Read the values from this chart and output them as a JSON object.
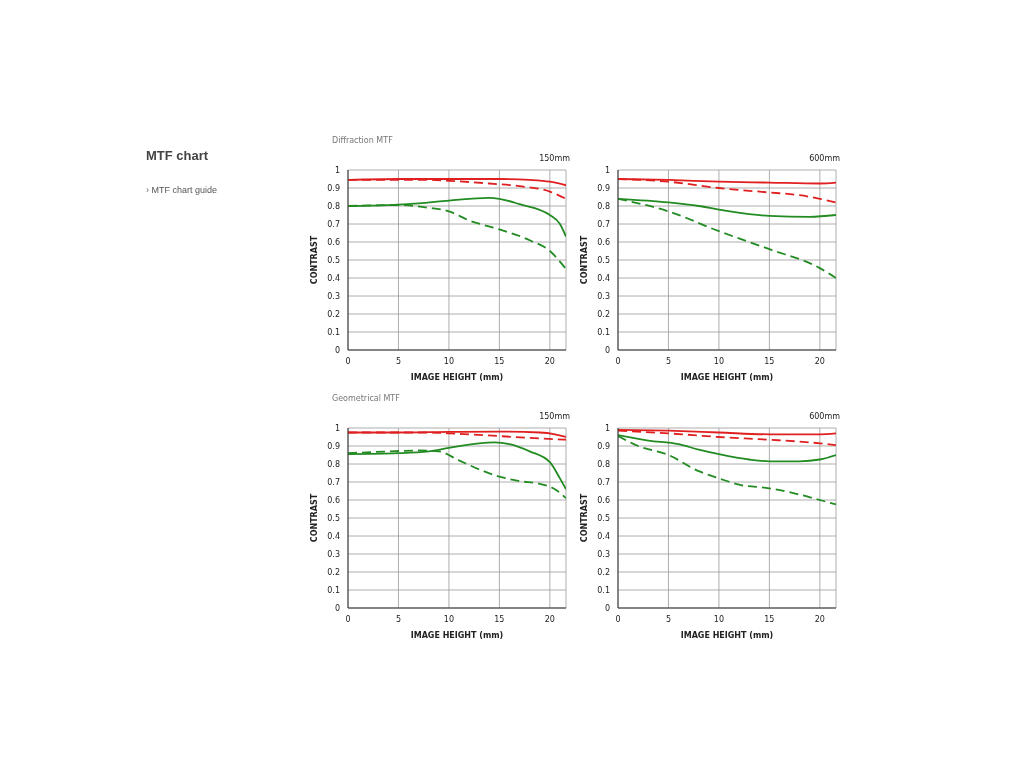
{
  "chart_data": [
    {
      "type": "other",
      "title": "MTF chart",
      "annotations": [
        "› MTF chart guide"
      ]
    },
    {
      "type": "line",
      "subtitle": "Diffraction MTF",
      "title": "150mm",
      "xlabel": "IMAGE HEIGHT (mm)",
      "ylabel": "CONTRAST",
      "xlim": [
        0,
        21.6
      ],
      "xticks": [
        0,
        5,
        10,
        15,
        20
      ],
      "ylim": [
        0,
        1
      ],
      "yticks": [
        0,
        0.1,
        0.2,
        0.3,
        0.4,
        0.5,
        0.6,
        0.7,
        0.8,
        0.9,
        1
      ],
      "grid": true,
      "series": [
        {
          "color": "#e02020",
          "line_style": "solid",
          "x": [
            0,
            5,
            10,
            15,
            18,
            20,
            21.6
          ],
          "values": [
            0.945,
            0.95,
            0.95,
            0.95,
            0.945,
            0.935,
            0.915
          ]
        },
        {
          "color": "#e02020",
          "line_style": "dashed",
          "x": [
            0,
            5,
            8,
            10,
            14,
            17,
            20,
            21.6
          ],
          "values": [
            0.945,
            0.945,
            0.945,
            0.94,
            0.925,
            0.91,
            0.88,
            0.84
          ]
        },
        {
          "color": "#228b22",
          "line_style": "solid",
          "x": [
            0,
            4,
            7,
            10,
            14,
            15,
            17,
            20,
            21,
            21.6
          ],
          "values": [
            0.8,
            0.805,
            0.815,
            0.83,
            0.845,
            0.84,
            0.81,
            0.75,
            0.7,
            0.63
          ]
        },
        {
          "color": "#228b22",
          "line_style": "dashed",
          "x": [
            0,
            5,
            8,
            10,
            12,
            15,
            18,
            20,
            21.6
          ],
          "values": [
            0.8,
            0.805,
            0.79,
            0.77,
            0.72,
            0.67,
            0.61,
            0.55,
            0.45
          ]
        }
      ]
    },
    {
      "type": "line",
      "title": "600mm",
      "xlabel": "IMAGE HEIGHT (mm)",
      "ylabel": "CONTRAST",
      "xlim": [
        0,
        21.6
      ],
      "xticks": [
        0,
        5,
        10,
        15,
        20
      ],
      "ylim": [
        0,
        1
      ],
      "yticks": [
        0,
        0.1,
        0.2,
        0.3,
        0.4,
        0.5,
        0.6,
        0.7,
        0.8,
        0.9,
        1
      ],
      "grid": true,
      "series": [
        {
          "color": "#e02020",
          "line_style": "solid",
          "x": [
            0,
            5,
            10,
            15,
            20,
            21.6
          ],
          "values": [
            0.95,
            0.945,
            0.935,
            0.93,
            0.925,
            0.93
          ]
        },
        {
          "color": "#e02020",
          "line_style": "dashed",
          "x": [
            0,
            5,
            10,
            15,
            18,
            20,
            21.6
          ],
          "values": [
            0.95,
            0.935,
            0.9,
            0.875,
            0.86,
            0.84,
            0.82
          ]
        },
        {
          "color": "#228b22",
          "line_style": "solid",
          "x": [
            0,
            5,
            8,
            10,
            13,
            15,
            19,
            21.6
          ],
          "values": [
            0.84,
            0.82,
            0.8,
            0.78,
            0.755,
            0.745,
            0.74,
            0.75
          ]
        },
        {
          "color": "#228b22",
          "line_style": "dashed",
          "x": [
            0,
            5,
            10,
            15,
            20,
            21.6
          ],
          "values": [
            0.84,
            0.77,
            0.66,
            0.56,
            0.455,
            0.4
          ]
        }
      ]
    },
    {
      "type": "line",
      "subtitle": "Geometrical MTF",
      "title": "150mm",
      "xlabel": "IMAGE HEIGHT (mm)",
      "ylabel": "CONTRAST",
      "xlim": [
        0,
        21.6
      ],
      "xticks": [
        0,
        5,
        10,
        15,
        20
      ],
      "ylim": [
        0,
        1
      ],
      "yticks": [
        0,
        0.1,
        0.2,
        0.3,
        0.4,
        0.5,
        0.6,
        0.7,
        0.8,
        0.9,
        1
      ],
      "grid": true,
      "series": [
        {
          "color": "#e02020",
          "line_style": "solid",
          "x": [
            0,
            5,
            10,
            15,
            19,
            20.5,
            21.6
          ],
          "values": [
            0.975,
            0.975,
            0.978,
            0.98,
            0.975,
            0.965,
            0.95
          ]
        },
        {
          "color": "#e02020",
          "line_style": "dashed",
          "x": [
            0,
            8,
            10,
            15,
            18,
            21.6
          ],
          "values": [
            0.975,
            0.975,
            0.97,
            0.955,
            0.945,
            0.935
          ]
        },
        {
          "color": "#228b22",
          "line_style": "solid",
          "x": [
            0,
            5,
            8,
            10,
            13,
            14.5,
            16,
            18,
            20,
            21,
            21.6
          ],
          "values": [
            0.855,
            0.86,
            0.87,
            0.89,
            0.915,
            0.92,
            0.91,
            0.87,
            0.81,
            0.72,
            0.66
          ]
        },
        {
          "color": "#228b22",
          "line_style": "dashed",
          "x": [
            0,
            4,
            7,
            9,
            11,
            13,
            15,
            17,
            19,
            20.5,
            21.6
          ],
          "values": [
            0.86,
            0.87,
            0.875,
            0.87,
            0.82,
            0.77,
            0.73,
            0.705,
            0.69,
            0.66,
            0.61
          ]
        }
      ]
    },
    {
      "type": "line",
      "title": "600mm",
      "xlabel": "IMAGE HEIGHT (mm)",
      "ylabel": "CONTRAST",
      "xlim": [
        0,
        21.6
      ],
      "xticks": [
        0,
        5,
        10,
        15,
        20
      ],
      "ylim": [
        0,
        1
      ],
      "yticks": [
        0,
        0.1,
        0.2,
        0.3,
        0.4,
        0.5,
        0.6,
        0.7,
        0.8,
        0.9,
        1
      ],
      "grid": true,
      "series": [
        {
          "color": "#e02020",
          "line_style": "solid",
          "x": [
            0,
            5,
            10,
            15,
            20,
            21.6
          ],
          "values": [
            0.99,
            0.985,
            0.975,
            0.965,
            0.965,
            0.97
          ]
        },
        {
          "color": "#e02020",
          "line_style": "dashed",
          "x": [
            0,
            5,
            10,
            15,
            19,
            21.6
          ],
          "values": [
            0.985,
            0.97,
            0.95,
            0.935,
            0.92,
            0.905
          ]
        },
        {
          "color": "#228b22",
          "line_style": "solid",
          "x": [
            0,
            3,
            6,
            8,
            10,
            13,
            15,
            18,
            20,
            21.6
          ],
          "values": [
            0.96,
            0.93,
            0.91,
            0.88,
            0.855,
            0.825,
            0.815,
            0.815,
            0.825,
            0.85
          ]
        },
        {
          "color": "#228b22",
          "line_style": "dashed",
          "x": [
            0,
            2,
            5,
            8,
            10,
            12,
            15,
            18,
            20,
            21.6
          ],
          "values": [
            0.955,
            0.9,
            0.85,
            0.76,
            0.72,
            0.685,
            0.665,
            0.63,
            0.6,
            0.575
          ]
        }
      ]
    }
  ]
}
